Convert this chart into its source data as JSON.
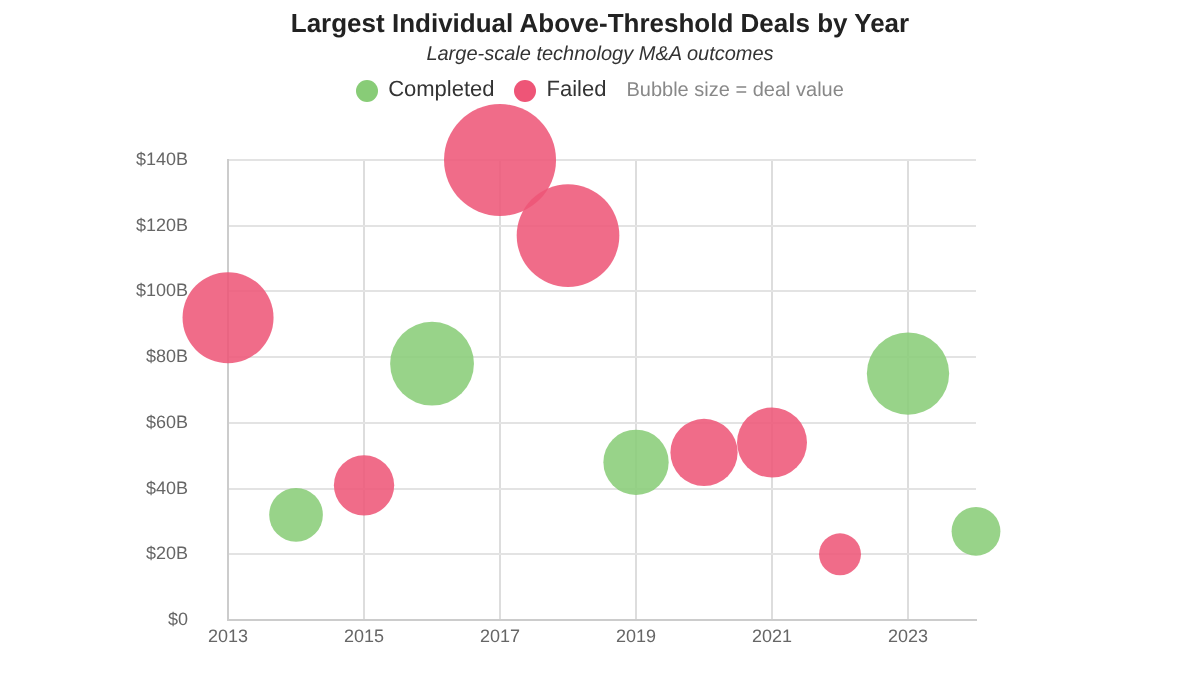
{
  "chart_data": {
    "type": "bubble",
    "title": "Largest Individual Above-Threshold Deals by Year",
    "subtitle": "Large-scale technology M&A outcomes",
    "annotations": [
      "Bubble size = deal value"
    ],
    "series": [
      {
        "name": "Completed",
        "color": "#88cc77",
        "x": [
          2014,
          2016,
          2019,
          2023,
          2024
        ],
        "values": [
          32,
          78,
          48,
          75,
          27
        ],
        "sizes": [
          0.23,
          0.56,
          0.34,
          0.54,
          0.19
        ]
      },
      {
        "name": "Failed",
        "color": "#ee5577",
        "x": [
          2013,
          2015,
          2017,
          2018,
          2020,
          2021,
          2022
        ],
        "values": [
          92,
          41,
          140,
          117,
          51,
          54,
          20
        ],
        "sizes": [
          0.66,
          0.29,
          1,
          0.84,
          0.36,
          0.39,
          0.14
        ]
      }
    ],
    "xlim": [
      2013,
      2024
    ],
    "xticks": [
      2013,
      2015,
      2017,
      2019,
      2021,
      2023
    ],
    "ylim": [
      0,
      140
    ],
    "yticks": [
      {
        "value": 0,
        "label": "$0"
      },
      {
        "value": 20,
        "label": "$20B"
      },
      {
        "value": 40,
        "label": "$40B"
      },
      {
        "value": 60,
        "label": "$60B"
      },
      {
        "value": 80,
        "label": "$80B"
      },
      {
        "value": 100,
        "label": "$100B"
      },
      {
        "value": 120,
        "label": "$120B"
      },
      {
        "value": 140,
        "label": "$140B"
      }
    ],
    "grid": true,
    "legend": "top"
  }
}
